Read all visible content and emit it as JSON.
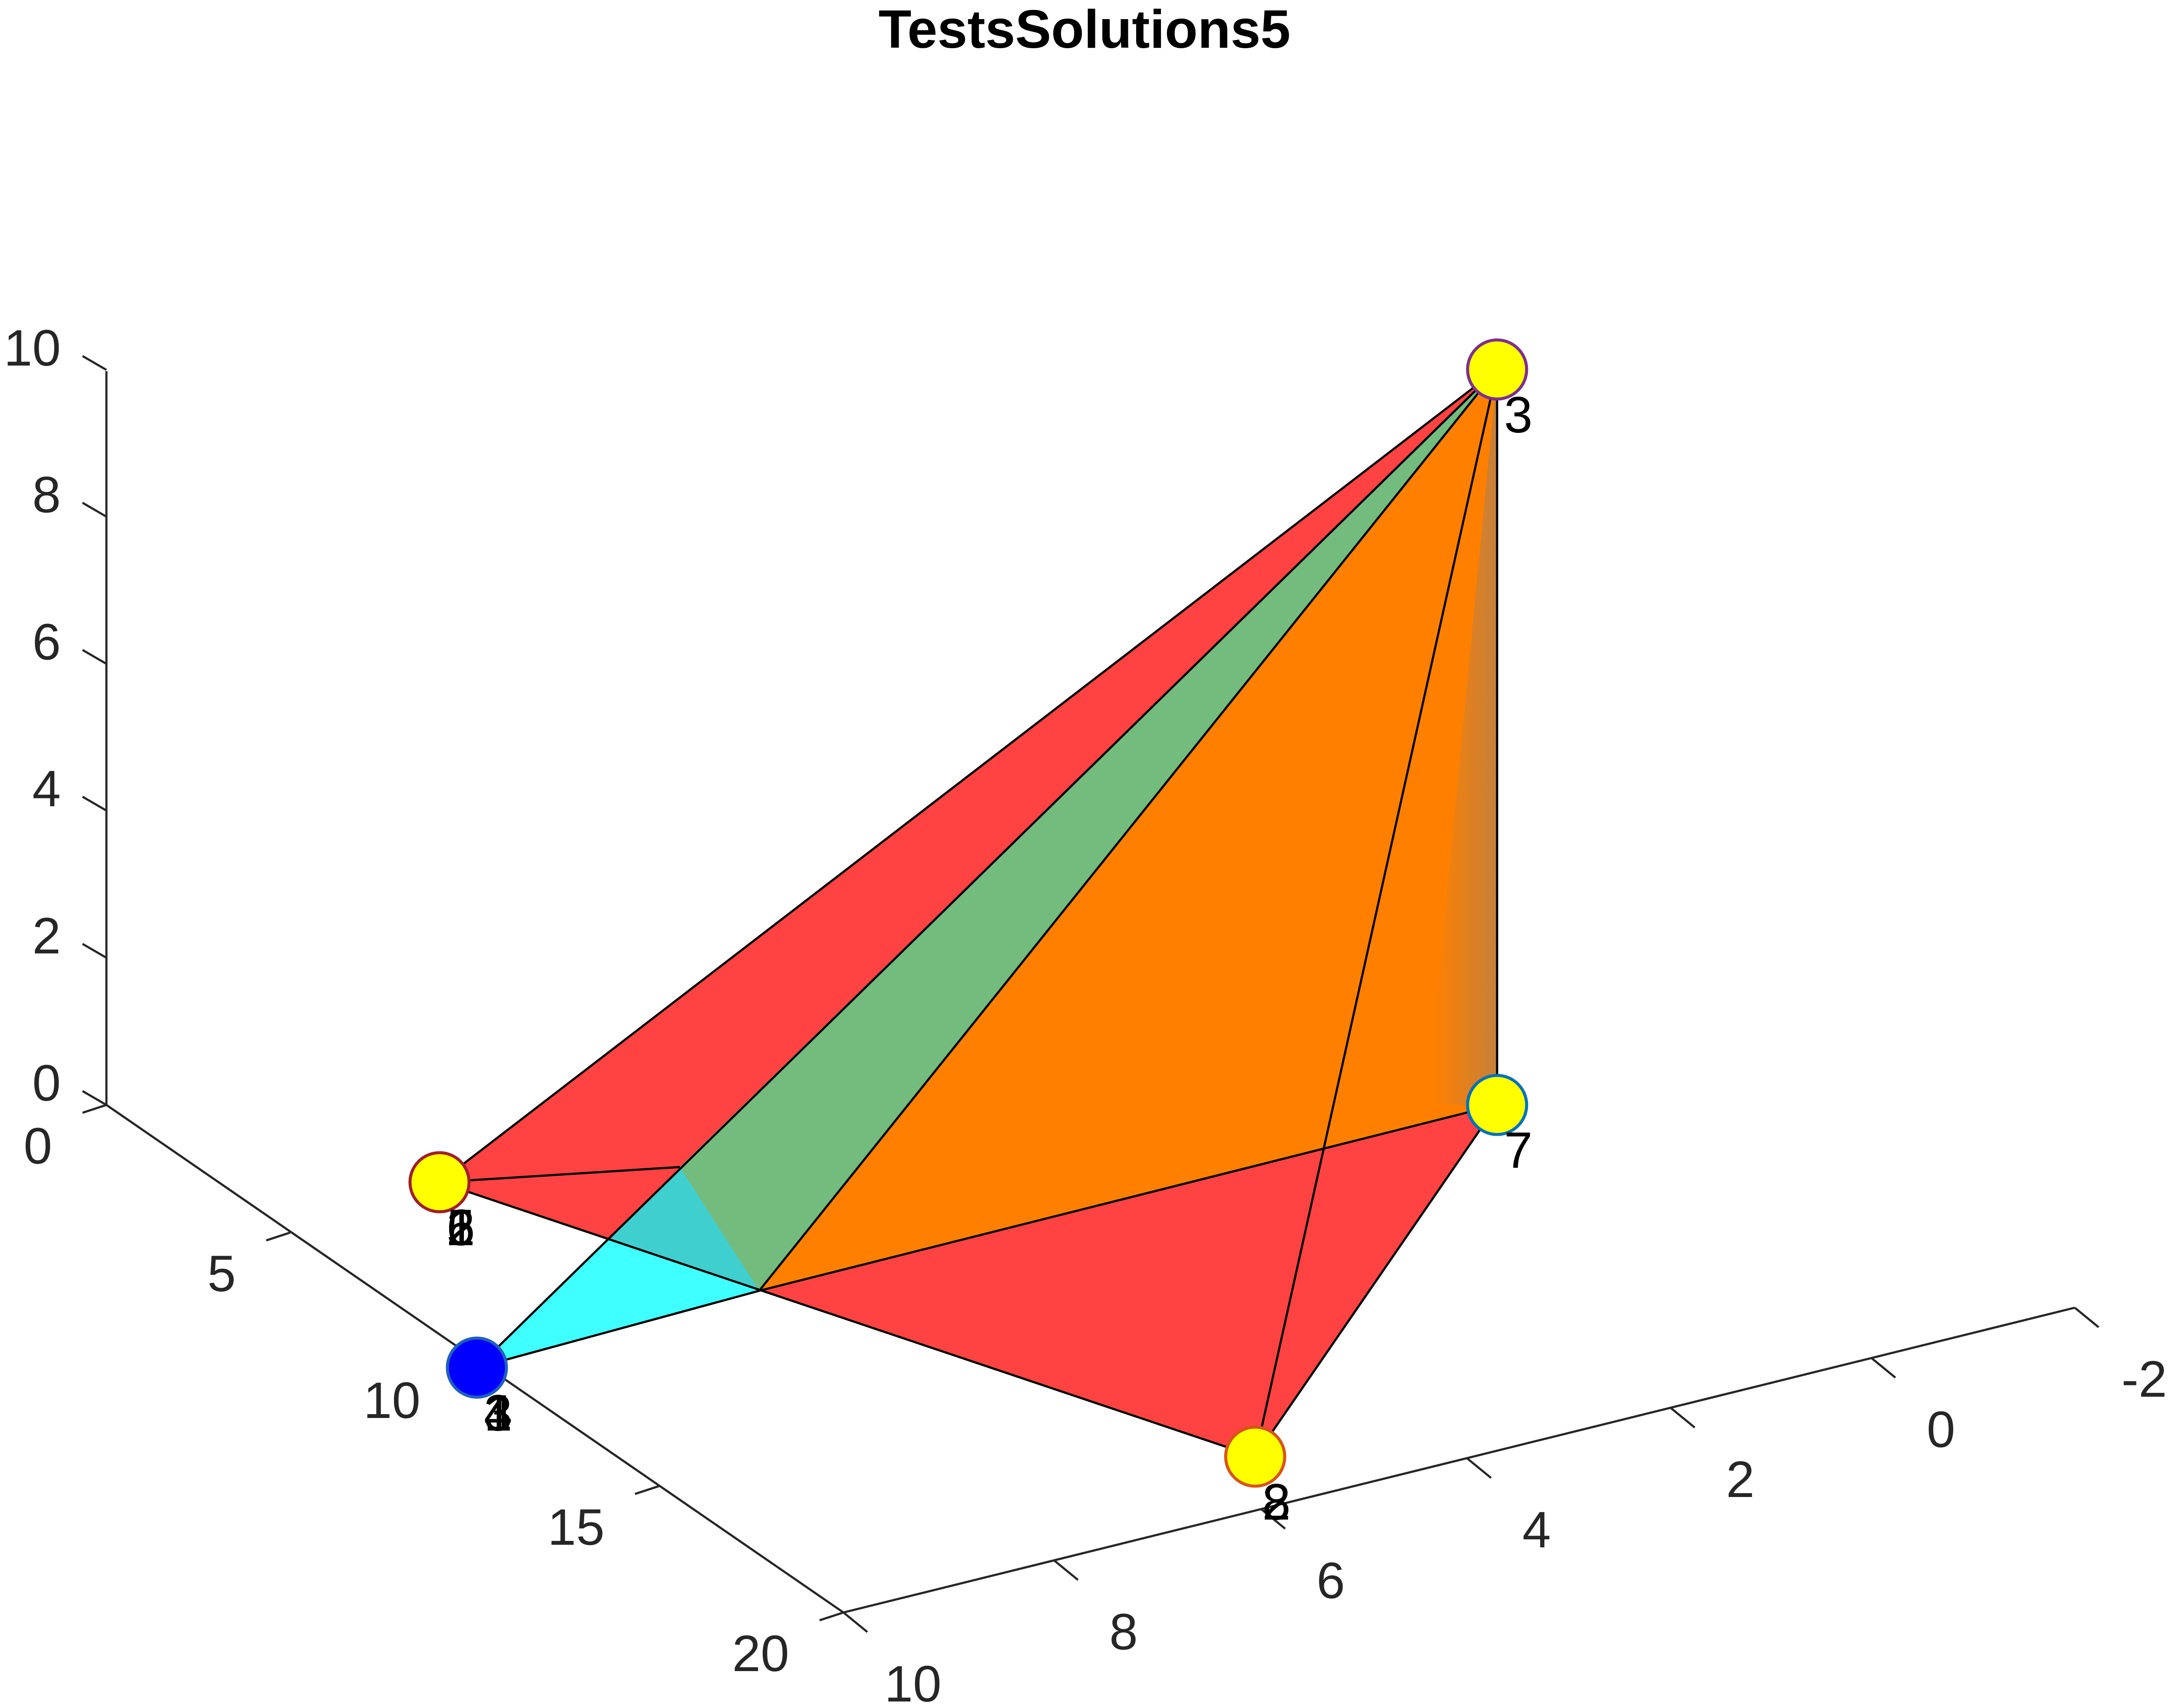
{
  "chart_data": {
    "type": "scatter3d",
    "title": "TestsSolutions5",
    "x_axis": {
      "ticks": [
        "-2",
        "0",
        "2",
        "4",
        "6",
        "8",
        "10"
      ]
    },
    "y_axis": {
      "ticks": [
        "0",
        "5",
        "10",
        "15",
        "20"
      ]
    },
    "z_axis": {
      "ticks": [
        "0",
        "2",
        "4",
        "6",
        "8",
        "10"
      ]
    },
    "points": [
      {
        "id": "A",
        "labels": [
          "1",
          "2",
          "5",
          "6"
        ],
        "face_color": "#ffff00",
        "edge_color": "#a0202a"
      },
      {
        "id": "B",
        "labels": [
          "1",
          "3",
          "4"
        ],
        "face_color": "#0000ff",
        "edge_color": "#1f5fbf"
      },
      {
        "id": "C",
        "labels": [
          "3"
        ],
        "face_color": "#ffff00",
        "edge_color": "#7e2f8e"
      },
      {
        "id": "D",
        "labels": [
          "7"
        ],
        "face_color": "#ffff00",
        "edge_color": "#0072bd"
      },
      {
        "id": "E",
        "labels": [
          "2",
          "8"
        ],
        "face_color": "#ffff00",
        "edge_color": "#d95319"
      }
    ],
    "faces": [
      {
        "name": "red-upper",
        "color": "#ff0000",
        "opacity": 0.74
      },
      {
        "name": "red-lower",
        "color": "#ff0000",
        "opacity": 0.74
      },
      {
        "name": "cyan",
        "color": "#00ffff",
        "opacity": 0.75
      },
      {
        "name": "green",
        "color": "#77bb77",
        "opacity": 0.92
      },
      {
        "name": "orange",
        "color": "#ff8000",
        "opacity": 1.0
      },
      {
        "name": "brown",
        "color": "#c08040",
        "opacity": 1.0
      }
    ]
  }
}
